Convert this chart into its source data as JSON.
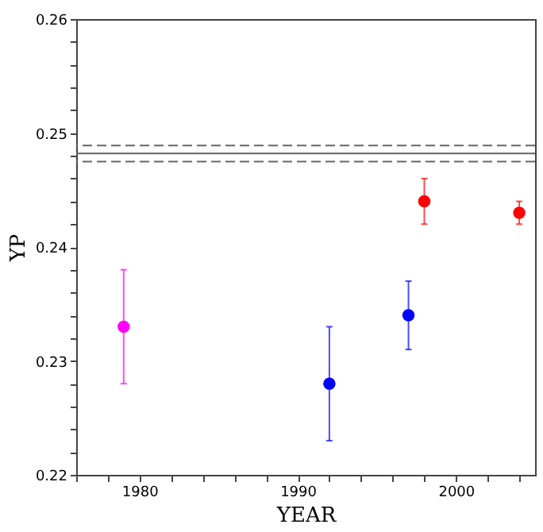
{
  "chart_data": {
    "type": "scatter",
    "xlabel": "YEAR",
    "ylabel": "YP",
    "series": [
      {
        "color": "#ff00ff",
        "x": [
          1979
        ],
        "values": [
          0.233
        ],
        "errors": [
          [
            0.228,
            0.238
          ]
        ]
      },
      {
        "color": "#0000ff",
        "x": [
          1992,
          1997
        ],
        "values": [
          0.228,
          0.234
        ],
        "errors": [
          [
            0.223,
            0.233
          ],
          [
            0.231,
            0.237
          ]
        ]
      },
      {
        "color": "#ff0000",
        "x": [
          1998,
          2004
        ],
        "values": [
          0.244,
          0.243
        ],
        "errors": [
          [
            0.242,
            0.246
          ],
          [
            0.242,
            0.244
          ]
        ]
      }
    ],
    "ref_lines": [
      {
        "axis": "y",
        "value": 0.2489,
        "label": null,
        "line_style": "dashed",
        "color": "#666666"
      },
      {
        "axis": "y",
        "value": 0.2482,
        "label": null,
        "line_style": "solid",
        "color": "#666666"
      },
      {
        "axis": "y",
        "value": 0.2475,
        "label": null,
        "line_style": "dashed",
        "color": "#666666"
      }
    ],
    "xlim": [
      1976,
      2005
    ],
    "xticks": [
      {
        "value": 1976,
        "label": null
      },
      {
        "value": 1978,
        "label": null
      },
      1980,
      {
        "value": 1982,
        "label": null
      },
      {
        "value": 1984,
        "label": null
      },
      {
        "value": 1986,
        "label": null
      },
      {
        "value": 1988,
        "label": null
      },
      1990,
      {
        "value": 1992,
        "label": null
      },
      {
        "value": 1994,
        "label": null
      },
      {
        "value": 1996,
        "label": null
      },
      {
        "value": 1998,
        "label": null
      },
      2000,
      {
        "value": 2002,
        "label": null
      },
      {
        "value": 2004,
        "label": null
      }
    ],
    "ylim": [
      0.22,
      0.26
    ],
    "yticks": [
      0.22,
      {
        "value": 0.222,
        "label": null
      },
      {
        "value": 0.224,
        "label": null
      },
      {
        "value": 0.226,
        "label": null
      },
      {
        "value": 0.228,
        "label": null
      },
      0.23,
      {
        "value": 0.232,
        "label": null
      },
      {
        "value": 0.234,
        "label": null
      },
      {
        "value": 0.236,
        "label": null
      },
      {
        "value": 0.238,
        "label": null
      },
      0.24,
      {
        "value": 0.242,
        "label": null
      },
      {
        "value": 0.244,
        "label": null
      },
      {
        "value": 0.246,
        "label": null
      },
      {
        "value": 0.248,
        "label": null
      },
      0.25,
      {
        "value": 0.252,
        "label": null
      },
      {
        "value": 0.254,
        "label": null
      },
      {
        "value": 0.256,
        "label": null
      },
      {
        "value": 0.258,
        "label": null
      },
      0.26
    ],
    "grid": false,
    "marker": "circle"
  }
}
